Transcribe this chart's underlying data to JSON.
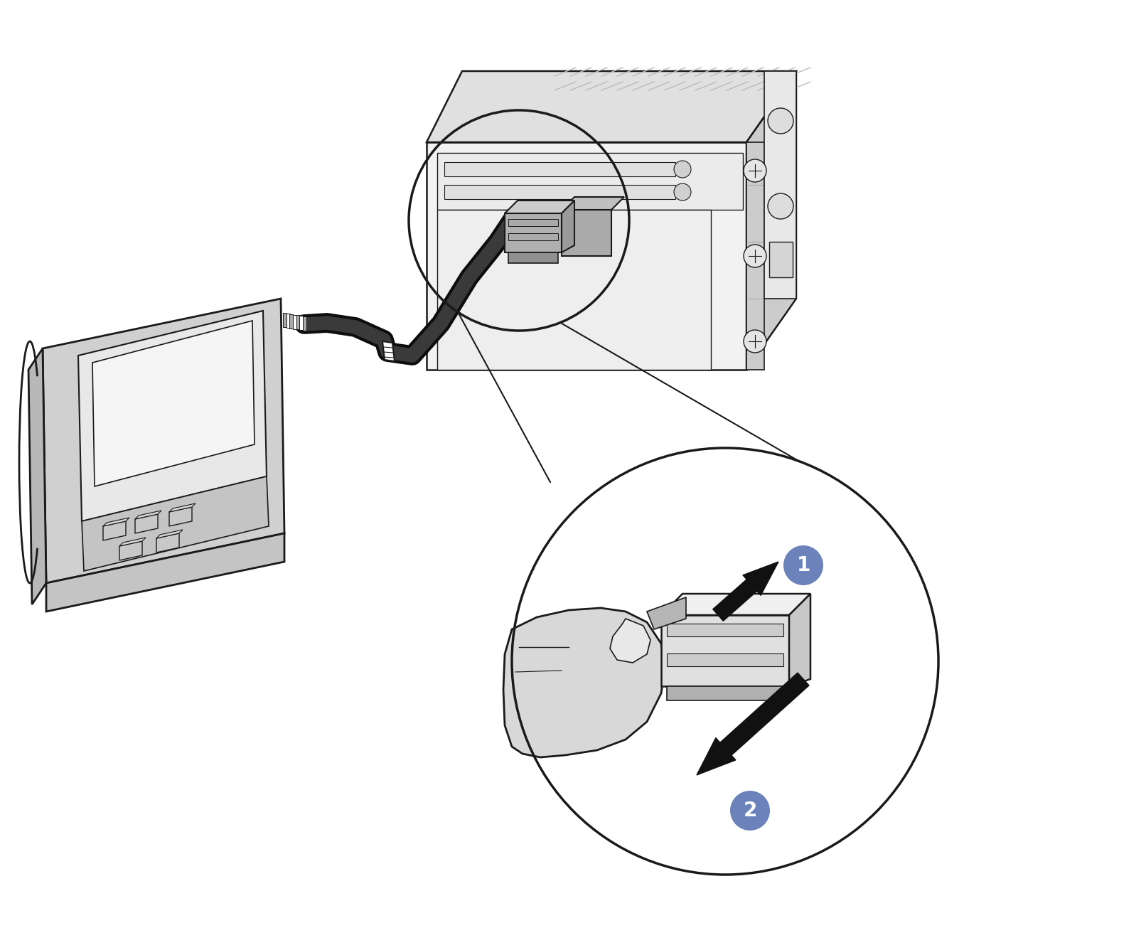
{
  "bg_color": "#ffffff",
  "lc": "#1a1a1a",
  "badge_color": "#6b82bb",
  "badge_text": "#ffffff",
  "device_gray": "#d0d0d0",
  "device_dark": "#b8b8b8",
  "device_mid": "#c4c4c4",
  "server_light": "#f2f2f2",
  "server_mid": "#e0e0e0",
  "server_dark": "#cccccc",
  "thumb_fill": "#d8d8d8",
  "conn_fill": "#c8c8c8",
  "conn_dark": "#aaaaaa",
  "cable_color": "#0d0d0d",
  "arrow_color": "#111111",
  "white": "#ffffff",
  "label1": "1",
  "label2": "2",
  "figw": 16.12,
  "figh": 13.36,
  "dpi": 100
}
